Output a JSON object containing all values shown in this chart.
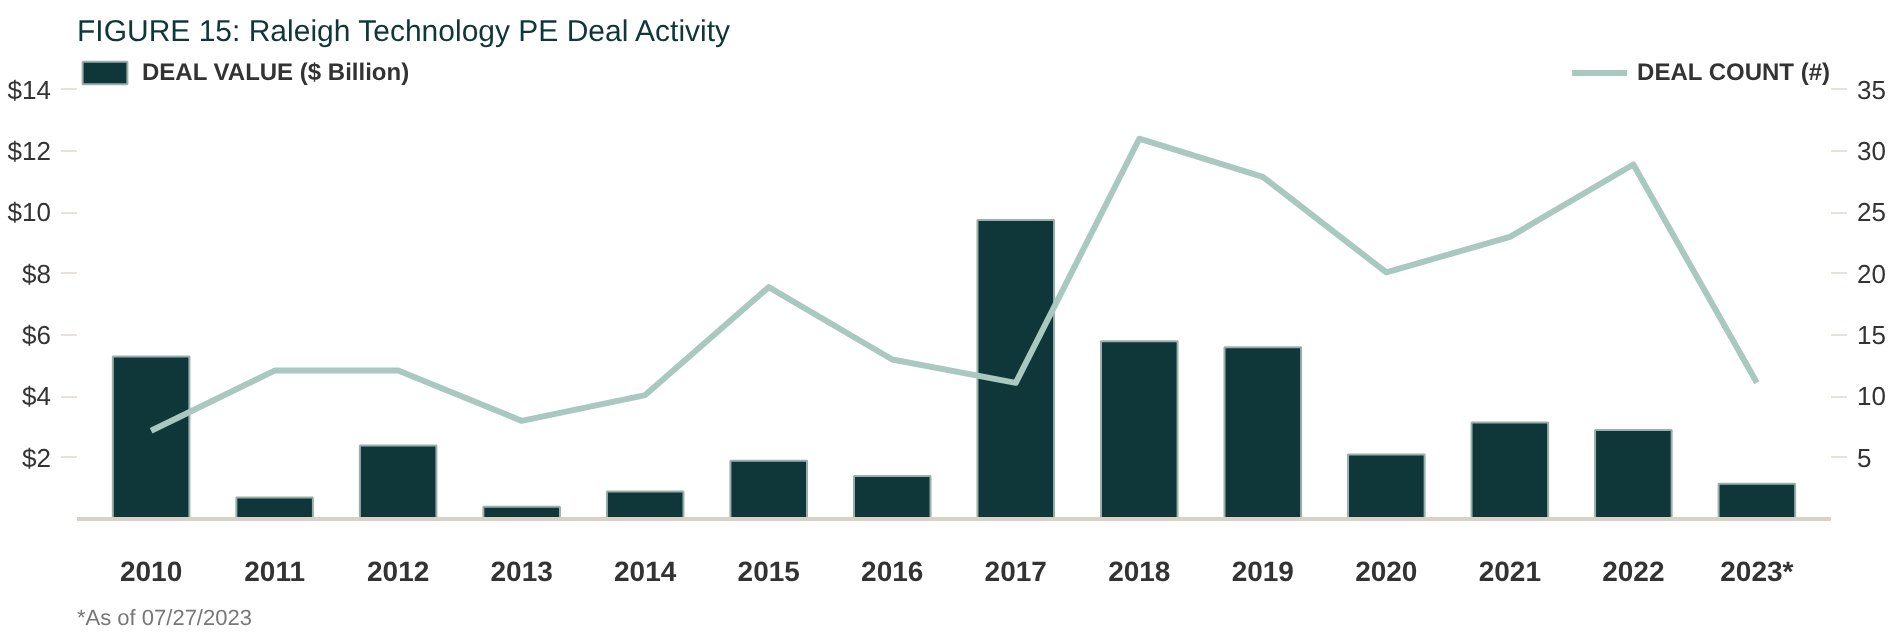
{
  "chart_data": {
    "type": "bar",
    "title": "FIGURE 15: Raleigh Technology PE Deal Activity",
    "categories": [
      "2010",
      "2011",
      "2012",
      "2013",
      "2014",
      "2015",
      "2016",
      "2017",
      "2018",
      "2019",
      "2020",
      "2021",
      "2022",
      "2023*"
    ],
    "series": [
      {
        "name": "DEAL VALUE ($ Billion)",
        "color": "#0f3638",
        "values": [
          5.3,
          0.7,
          2.4,
          0.4,
          0.9,
          1.9,
          1.4,
          9.75,
          5.8,
          5.6,
          2.1,
          3.15,
          2.9,
          1.15
        ]
      },
      {
        "name": "DEAL COUNT (#)",
        "type": "line",
        "axis": "y2",
        "color": "#a8c8c0",
        "values": [
          7.2,
          12.1,
          12.1,
          8.0,
          10.1,
          18.9,
          13.0,
          11.1,
          31.0,
          27.9,
          20.1,
          23.0,
          28.9,
          11.1
        ]
      }
    ],
    "ylim": [
      0,
      15
    ],
    "yticks": [
      {
        "value": 2,
        "label": "$2"
      },
      {
        "value": 4,
        "label": "$4"
      },
      {
        "value": 6,
        "label": "$6"
      },
      {
        "value": 8,
        "label": "$8"
      },
      {
        "value": 10,
        "label": "$10"
      },
      {
        "value": 12,
        "label": "$12"
      },
      {
        "value": 14,
        "label": "$14"
      }
    ],
    "y2lim": [
      0,
      37.5
    ],
    "y2ticks": [
      5,
      10,
      15,
      20,
      25,
      30,
      35
    ],
    "legend": "top",
    "grid": false,
    "annotations": [
      "*As of 07/27/2023"
    ]
  }
}
